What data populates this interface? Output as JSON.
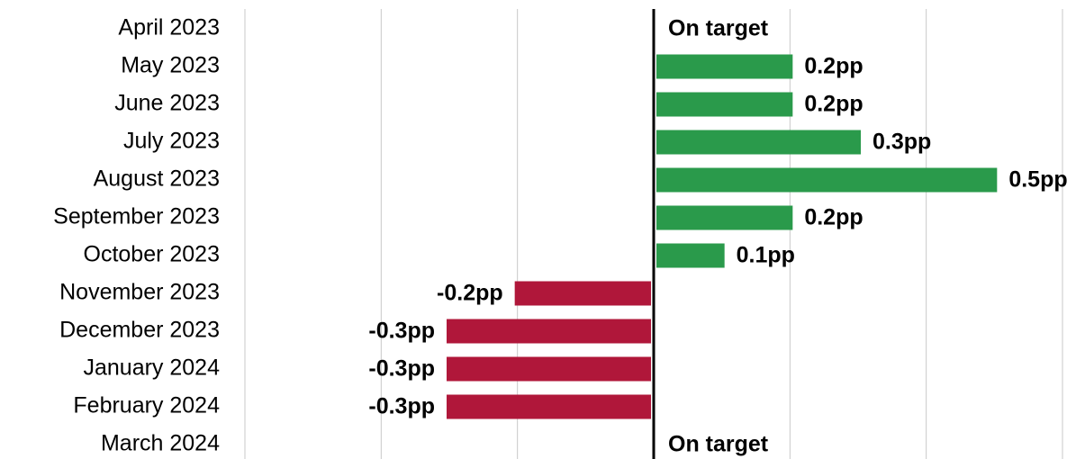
{
  "chart_data": {
    "type": "bar",
    "orientation": "horizontal",
    "categories": [
      "April 2023",
      "May 2023",
      "June 2023",
      "July 2023",
      "August 2023",
      "September 2023",
      "October 2023",
      "November 2023",
      "December 2023",
      "January 2024",
      "February 2024",
      "March 2024"
    ],
    "values": [
      0,
      0.2,
      0.2,
      0.3,
      0.5,
      0.2,
      0.1,
      -0.2,
      -0.3,
      -0.3,
      -0.3,
      0
    ],
    "value_labels": [
      "On target",
      "0.2pp",
      "0.2pp",
      "0.3pp",
      "0.5pp",
      "0.2pp",
      "0.1pp",
      "-0.2pp",
      "-0.3pp",
      "-0.3pp",
      "-0.3pp",
      "On target"
    ],
    "positive_color": "#2a9a4b",
    "negative_color": "#b0173a",
    "xlim": [
      -0.6,
      0.6
    ],
    "xticks": [
      -0.6,
      -0.4,
      -0.2,
      0,
      0.2,
      0.4,
      0.6
    ],
    "grid": true
  }
}
